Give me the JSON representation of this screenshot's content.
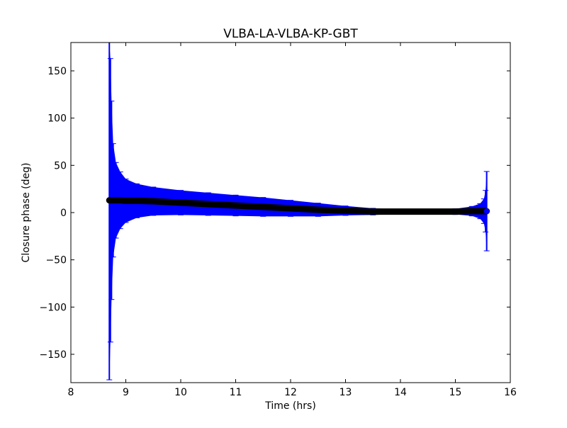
{
  "chart_data": {
    "type": "scatter",
    "title": "VLBA-LA-VLBA-KP-GBT",
    "xlabel": "Time (hrs)",
    "ylabel": "Closure phase (deg)",
    "xlim": [
      8,
      16
    ],
    "ylim": [
      -180,
      180
    ],
    "xticks": [
      "8",
      "9",
      "10",
      "11",
      "12",
      "13",
      "14",
      "15",
      "16"
    ],
    "yticks": [
      "−150",
      "−100",
      "−50",
      "0",
      "50",
      "100",
      "150"
    ],
    "ytick_values": [
      -150,
      -100,
      -50,
      0,
      50,
      100,
      150
    ],
    "grid": false,
    "marker_color": "#000000",
    "errorbar_color": "#0000ff",
    "points": [
      {
        "x": 8.7,
        "y": 13,
        "err": 190
      },
      {
        "x": 8.72,
        "y": 13,
        "err": 150
      },
      {
        "x": 8.74,
        "y": 13,
        "err": 105
      },
      {
        "x": 8.77,
        "y": 13,
        "err": 60
      },
      {
        "x": 8.82,
        "y": 13,
        "err": 40
      },
      {
        "x": 8.9,
        "y": 13,
        "err": 30
      },
      {
        "x": 9.0,
        "y": 12.5,
        "err": 23
      },
      {
        "x": 9.2,
        "y": 12.5,
        "err": 18
      },
      {
        "x": 9.5,
        "y": 12,
        "err": 15
      },
      {
        "x": 10.0,
        "y": 10.5,
        "err": 13
      },
      {
        "x": 10.5,
        "y": 9,
        "err": 12
      },
      {
        "x": 11.0,
        "y": 7.5,
        "err": 11
      },
      {
        "x": 11.5,
        "y": 6,
        "err": 10
      },
      {
        "x": 12.0,
        "y": 4.5,
        "err": 8.5
      },
      {
        "x": 12.5,
        "y": 3,
        "err": 7
      },
      {
        "x": 13.0,
        "y": 2,
        "err": 5
      },
      {
        "x": 13.5,
        "y": 1,
        "err": 3.5
      },
      {
        "x": 14.0,
        "y": 1,
        "err": 2.5
      },
      {
        "x": 14.5,
        "y": 1,
        "err": 2.5
      },
      {
        "x": 15.0,
        "y": 1,
        "err": 3
      },
      {
        "x": 15.3,
        "y": 1.5,
        "err": 5
      },
      {
        "x": 15.45,
        "y": 1.5,
        "err": 8
      },
      {
        "x": 15.52,
        "y": 1.5,
        "err": 13
      },
      {
        "x": 15.55,
        "y": 1.5,
        "err": 22
      },
      {
        "x": 15.57,
        "y": 1.5,
        "err": 42
      }
    ]
  }
}
